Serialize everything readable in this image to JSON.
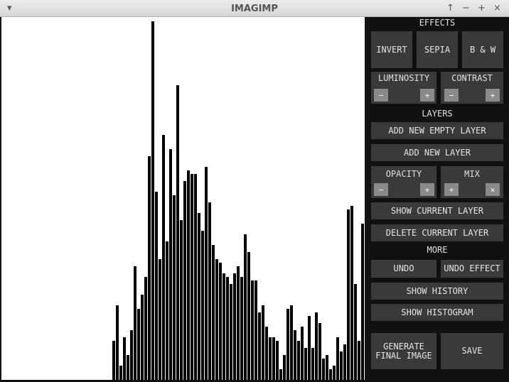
{
  "window": {
    "title": "IMAGIMP",
    "menu_icon": "▾",
    "controls": [
      "↑",
      "−",
      "+",
      "×"
    ]
  },
  "histogram": {
    "type": "bar",
    "color": "#000000",
    "values": [
      55,
      105,
      20,
      60,
      35,
      70,
      160,
      100,
      120,
      145,
      315,
      505,
      265,
      170,
      345,
      195,
      325,
      260,
      415,
      225,
      280,
      295,
      290,
      290,
      235,
      210,
      300,
      250,
      190,
      170,
      165,
      150,
      145,
      135,
      150,
      160,
      145,
      205,
      180,
      140,
      140,
      95,
      105,
      75,
      60,
      60,
      55,
      15,
      35,
      100,
      105,
      70,
      55,
      75,
      45,
      90,
      45,
      95,
      80,
      30,
      35,
      15,
      20,
      60,
      40,
      50,
      240,
      245,
      135,
      55,
      220
    ]
  },
  "panel": {
    "effects": {
      "label": "EFFECTS",
      "buttons": [
        "INVERT",
        "SEPIA",
        "B & W"
      ]
    },
    "luminosity": {
      "label": "LUMINOSITY",
      "minus": "−",
      "plus": "+"
    },
    "contrast": {
      "label": "CONTRAST",
      "minus": "−",
      "plus": "+"
    },
    "layers": {
      "label": "LAYERS",
      "add_empty": "ADD NEW EMPTY LAYER",
      "add": "ADD NEW LAYER",
      "show": "SHOW CURRENT LAYER",
      "delete": "DELETE CURRENT LAYER"
    },
    "opacity": {
      "label": "OPACITY",
      "minus": "−",
      "plus": "+"
    },
    "mix": {
      "label": "MIX",
      "plus": "+",
      "close": "×"
    },
    "more": {
      "label": "MORE",
      "undo": "UNDO",
      "undo_effect": "UNDO EFFECT",
      "history": "SHOW HISTORY",
      "histogram": "SHOW HISTOGRAM",
      "generate": "GENERATE FINAL IMAGE",
      "save": "SAVE"
    }
  }
}
